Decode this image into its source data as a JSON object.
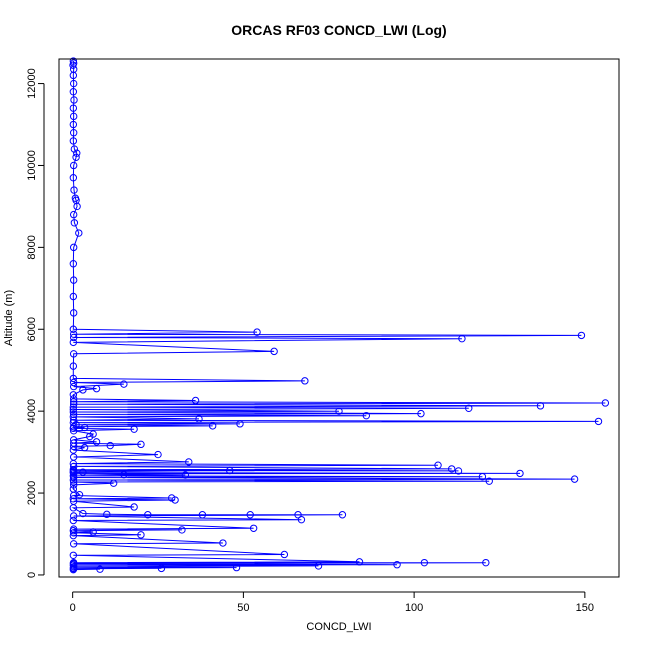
{
  "chart_data": {
    "type": "line",
    "title": "ORCAS RF03 CONCD_LWI (Log)",
    "xlabel": "CONCD_LWI",
    "ylabel": "Altitude (m)",
    "xlim": [
      -4,
      160
    ],
    "ylim": [
      -50,
      12600
    ],
    "x_ticks": [
      0,
      50,
      100,
      150
    ],
    "y_ticks": [
      0,
      2000,
      4000,
      6000,
      8000,
      10000,
      12000
    ],
    "grid": false,
    "line_color": "#0000ff",
    "marker": "open-circle",
    "series": [
      {
        "values": [
          {
            "x": 0.2,
            "y": 12550
          },
          {
            "x": 0.3,
            "y": 12500
          },
          {
            "x": 0.1,
            "y": 12450
          },
          {
            "x": 0.3,
            "y": 12350
          },
          {
            "x": 0.2,
            "y": 12200
          },
          {
            "x": 0.3,
            "y": 12000
          },
          {
            "x": 0.2,
            "y": 11800
          },
          {
            "x": 0.4,
            "y": 11600
          },
          {
            "x": 0.2,
            "y": 11400
          },
          {
            "x": 0.3,
            "y": 11200
          },
          {
            "x": 0.2,
            "y": 11000
          },
          {
            "x": 0.3,
            "y": 10800
          },
          {
            "x": 0.2,
            "y": 10600
          },
          {
            "x": 0.5,
            "y": 10400
          },
          {
            "x": 1.2,
            "y": 10300
          },
          {
            "x": 1.0,
            "y": 10200
          },
          {
            "x": 0.3,
            "y": 10000
          },
          {
            "x": 0.2,
            "y": 9700
          },
          {
            "x": 0.4,
            "y": 9400
          },
          {
            "x": 0.8,
            "y": 9200
          },
          {
            "x": 1.0,
            "y": 9150
          },
          {
            "x": 1.3,
            "y": 9000
          },
          {
            "x": 0.3,
            "y": 8800
          },
          {
            "x": 0.5,
            "y": 8600
          },
          {
            "x": 1.8,
            "y": 8350
          },
          {
            "x": 0.3,
            "y": 8000
          },
          {
            "x": 0.2,
            "y": 7600
          },
          {
            "x": 0.3,
            "y": 7200
          },
          {
            "x": 0.2,
            "y": 6800
          },
          {
            "x": 0.3,
            "y": 6400
          },
          {
            "x": 0.2,
            "y": 6000
          },
          {
            "x": 54,
            "y": 5930
          },
          {
            "x": 0.3,
            "y": 5880
          },
          {
            "x": 149,
            "y": 5850
          },
          {
            "x": 0.3,
            "y": 5800
          },
          {
            "x": 114,
            "y": 5770
          },
          {
            "x": 0.2,
            "y": 5680
          },
          {
            "x": 59,
            "y": 5460
          },
          {
            "x": 0.3,
            "y": 5400
          },
          {
            "x": 0.2,
            "y": 5100
          },
          {
            "x": 0.2,
            "y": 4800
          },
          {
            "x": 68,
            "y": 4740
          },
          {
            "x": 0.3,
            "y": 4700
          },
          {
            "x": 15,
            "y": 4660
          },
          {
            "x": 0.3,
            "y": 4600
          },
          {
            "x": 7,
            "y": 4550
          },
          {
            "x": 3,
            "y": 4520
          },
          {
            "x": 0.2,
            "y": 4400
          },
          {
            "x": 0.3,
            "y": 4300
          },
          {
            "x": 36,
            "y": 4260
          },
          {
            "x": 0.3,
            "y": 4230
          },
          {
            "x": 156,
            "y": 4200
          },
          {
            "x": 0.3,
            "y": 4170
          },
          {
            "x": 137,
            "y": 4130
          },
          {
            "x": 0.2,
            "y": 4100
          },
          {
            "x": 116,
            "y": 4070
          },
          {
            "x": 0.2,
            "y": 4040
          },
          {
            "x": 78,
            "y": 4000
          },
          {
            "x": 0.2,
            "y": 3980
          },
          {
            "x": 102,
            "y": 3940
          },
          {
            "x": 0.3,
            "y": 3920
          },
          {
            "x": 86,
            "y": 3890
          },
          {
            "x": 0.2,
            "y": 3860
          },
          {
            "x": 37,
            "y": 3810
          },
          {
            "x": 0.3,
            "y": 3780
          },
          {
            "x": 154,
            "y": 3750
          },
          {
            "x": 0.2,
            "y": 3720
          },
          {
            "x": 49,
            "y": 3690
          },
          {
            "x": 1.0,
            "y": 3670
          },
          {
            "x": 41,
            "y": 3640
          },
          {
            "x": 0.3,
            "y": 3620
          },
          {
            "x": 3.5,
            "y": 3600
          },
          {
            "x": 0.2,
            "y": 3580
          },
          {
            "x": 18,
            "y": 3560
          },
          {
            "x": 0.3,
            "y": 3520
          },
          {
            "x": 6,
            "y": 3440
          },
          {
            "x": 5,
            "y": 3380
          },
          {
            "x": 0.3,
            "y": 3300
          },
          {
            "x": 7,
            "y": 3250
          },
          {
            "x": 0.3,
            "y": 3220
          },
          {
            "x": 20,
            "y": 3190
          },
          {
            "x": 11,
            "y": 3160
          },
          {
            "x": 0.3,
            "y": 3140
          },
          {
            "x": 3.5,
            "y": 3110
          },
          {
            "x": 0.2,
            "y": 3050
          },
          {
            "x": 25,
            "y": 2940
          },
          {
            "x": 0.3,
            "y": 2880
          },
          {
            "x": 34,
            "y": 2760
          },
          {
            "x": 0.2,
            "y": 2720
          },
          {
            "x": 107,
            "y": 2680
          },
          {
            "x": 0.3,
            "y": 2650
          },
          {
            "x": 111,
            "y": 2590
          },
          {
            "x": 0.2,
            "y": 2570
          },
          {
            "x": 113,
            "y": 2540
          },
          {
            "x": 0.3,
            "y": 2550
          },
          {
            "x": 46,
            "y": 2550
          },
          {
            "x": 0.2,
            "y": 2520
          },
          {
            "x": 3,
            "y": 2510
          },
          {
            "x": 0.2,
            "y": 2500
          },
          {
            "x": 131,
            "y": 2480
          },
          {
            "x": 0.3,
            "y": 2470
          },
          {
            "x": 15,
            "y": 2450
          },
          {
            "x": 33,
            "y": 2440
          },
          {
            "x": 0.2,
            "y": 2420
          },
          {
            "x": 120,
            "y": 2400
          },
          {
            "x": 0.3,
            "y": 2380
          },
          {
            "x": 147,
            "y": 2340
          },
          {
            "x": 0.2,
            "y": 2320
          },
          {
            "x": 122,
            "y": 2290
          },
          {
            "x": 0.3,
            "y": 2270
          },
          {
            "x": 12,
            "y": 2240
          },
          {
            "x": 0.3,
            "y": 2200
          },
          {
            "x": 0.2,
            "y": 2100
          },
          {
            "x": 2,
            "y": 1960
          },
          {
            "x": 0.3,
            "y": 1940
          },
          {
            "x": 29,
            "y": 1880
          },
          {
            "x": 0.2,
            "y": 1860
          },
          {
            "x": 30,
            "y": 1830
          },
          {
            "x": 0.3,
            "y": 1800
          },
          {
            "x": 18,
            "y": 1660
          },
          {
            "x": 0.2,
            "y": 1640
          },
          {
            "x": 3,
            "y": 1500
          },
          {
            "x": 10,
            "y": 1480
          },
          {
            "x": 22,
            "y": 1470
          },
          {
            "x": 38,
            "y": 1470
          },
          {
            "x": 52,
            "y": 1470
          },
          {
            "x": 66,
            "y": 1470
          },
          {
            "x": 79,
            "y": 1470
          },
          {
            "x": 0.3,
            "y": 1440
          },
          {
            "x": 67,
            "y": 1350
          },
          {
            "x": 0.2,
            "y": 1330
          },
          {
            "x": 53,
            "y": 1140
          },
          {
            "x": 0.3,
            "y": 1120
          },
          {
            "x": 32,
            "y": 1100
          },
          {
            "x": 0.2,
            "y": 1080
          },
          {
            "x": 6,
            "y": 1050
          },
          {
            "x": 0.3,
            "y": 1030
          },
          {
            "x": 20,
            "y": 980
          },
          {
            "x": 0.2,
            "y": 960
          },
          {
            "x": 44,
            "y": 780
          },
          {
            "x": 0.3,
            "y": 760
          },
          {
            "x": 62,
            "y": 500
          },
          {
            "x": 0.2,
            "y": 480
          },
          {
            "x": 84,
            "y": 320
          },
          {
            "x": 0.3,
            "y": 300
          },
          {
            "x": 103,
            "y": 300
          },
          {
            "x": 0.2,
            "y": 290
          },
          {
            "x": 121,
            "y": 300
          },
          {
            "x": 0.3,
            "y": 270
          },
          {
            "x": 95,
            "y": 250
          },
          {
            "x": 0.2,
            "y": 240
          },
          {
            "x": 72,
            "y": 220
          },
          {
            "x": 0.3,
            "y": 200
          },
          {
            "x": 48,
            "y": 180
          },
          {
            "x": 0.2,
            "y": 170
          },
          {
            "x": 26,
            "y": 160
          },
          {
            "x": 0.3,
            "y": 150
          },
          {
            "x": 8,
            "y": 140
          },
          {
            "x": 0.2,
            "y": 130
          }
        ]
      }
    ]
  }
}
